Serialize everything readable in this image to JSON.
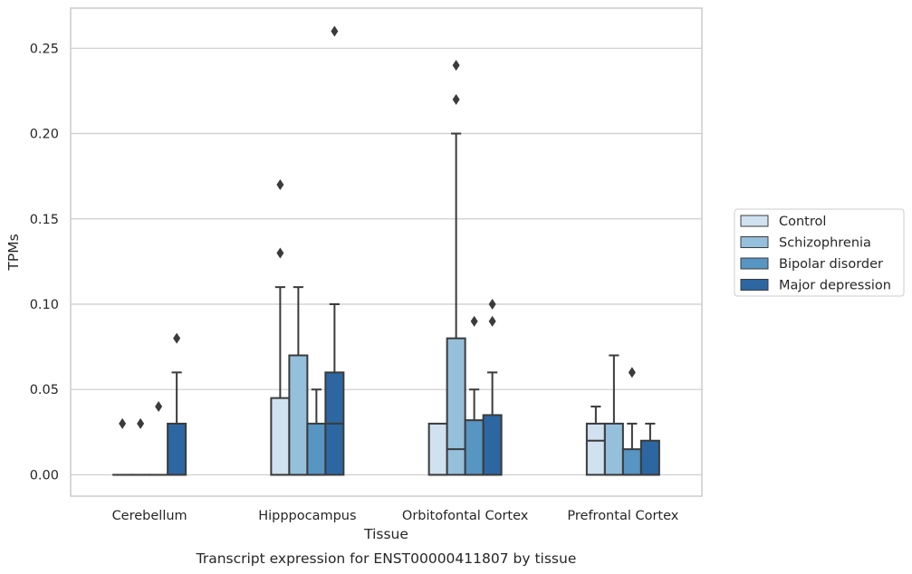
{
  "caption": "Transcript expression for ENST00000411807 by tissue",
  "chart_data": {
    "type": "boxplot",
    "title": "",
    "xlabel": "Tissue",
    "ylabel": "TPMs",
    "ylim": [
      -0.0125,
      0.2735
    ],
    "yticks": [
      "0.00",
      "0.05",
      "0.10",
      "0.15",
      "0.20",
      "0.25"
    ],
    "grid": "horizontal",
    "legend_position": "right",
    "categories": [
      "Cerebellum",
      "Hipppocampus",
      "Orbitofontal Cortex",
      "Prefrontal Cortex"
    ],
    "series": [
      {
        "name": "Control",
        "color": "#d0e1f0",
        "boxes": [
          {
            "q1": 0,
            "median": 0,
            "q3": 0,
            "whisker_low": 0,
            "whisker_high": 0,
            "outliers": [
              0.03
            ]
          },
          {
            "q1": 0,
            "median": 0,
            "q3": 0.045,
            "whisker_low": 0,
            "whisker_high": 0.11,
            "outliers": [
              0.13,
              0.17
            ]
          },
          {
            "q1": 0,
            "median": 0,
            "q3": 0.03,
            "whisker_low": 0,
            "whisker_high": 0.03,
            "outliers": []
          },
          {
            "q1": 0,
            "median": 0.02,
            "q3": 0.03,
            "whisker_low": 0,
            "whisker_high": 0.04,
            "outliers": []
          }
        ]
      },
      {
        "name": "Schizophrenia",
        "color": "#95c0dc",
        "boxes": [
          {
            "q1": 0,
            "median": 0,
            "q3": 0,
            "whisker_low": 0,
            "whisker_high": 0,
            "outliers": [
              0.03
            ]
          },
          {
            "q1": 0,
            "median": 0,
            "q3": 0.07,
            "whisker_low": 0,
            "whisker_high": 0.11,
            "outliers": []
          },
          {
            "q1": 0,
            "median": 0.015,
            "q3": 0.08,
            "whisker_low": 0,
            "whisker_high": 0.2,
            "outliers": [
              0.22,
              0.24
            ]
          },
          {
            "q1": 0,
            "median": 0,
            "q3": 0.03,
            "whisker_low": 0,
            "whisker_high": 0.07,
            "outliers": []
          }
        ]
      },
      {
        "name": "Bipolar disorder",
        "color": "#5795c3",
        "boxes": [
          {
            "q1": 0,
            "median": 0,
            "q3": 0,
            "whisker_low": 0,
            "whisker_high": 0,
            "outliers": [
              0.04
            ]
          },
          {
            "q1": 0,
            "median": 0,
            "q3": 0.03,
            "whisker_low": 0,
            "whisker_high": 0.05,
            "outliers": []
          },
          {
            "q1": 0,
            "median": 0,
            "q3": 0.032,
            "whisker_low": 0,
            "whisker_high": 0.05,
            "outliers": [
              0.09
            ]
          },
          {
            "q1": 0,
            "median": 0,
            "q3": 0.015,
            "whisker_low": 0,
            "whisker_high": 0.03,
            "outliers": [
              0.06
            ]
          }
        ]
      },
      {
        "name": "Major depression",
        "color": "#2c67a2",
        "boxes": [
          {
            "q1": 0,
            "median": 0,
            "q3": 0.03,
            "whisker_low": 0,
            "whisker_high": 0.06,
            "outliers": [
              0.08
            ]
          },
          {
            "q1": 0,
            "median": 0.03,
            "q3": 0.06,
            "whisker_low": 0,
            "whisker_high": 0.1,
            "outliers": [
              0.26
            ]
          },
          {
            "q1": 0,
            "median": 0,
            "q3": 0.035,
            "whisker_low": 0,
            "whisker_high": 0.06,
            "outliers": [
              0.09,
              0.1
            ]
          },
          {
            "q1": 0,
            "median": 0,
            "q3": 0.02,
            "whisker_low": 0,
            "whisker_high": 0.03,
            "outliers": []
          }
        ]
      }
    ]
  }
}
